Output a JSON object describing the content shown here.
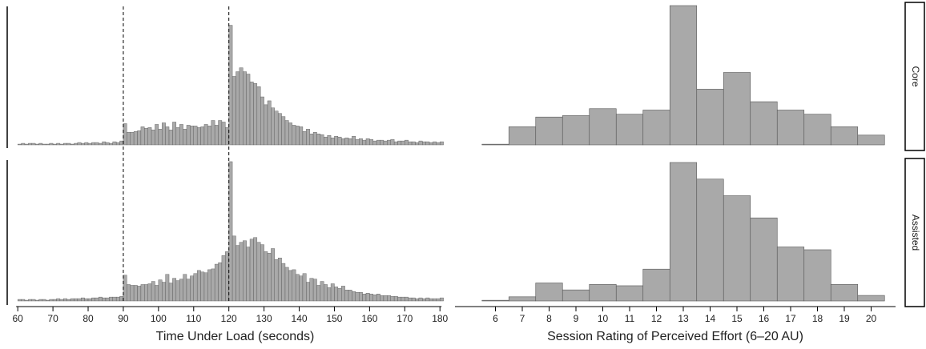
{
  "colors": {
    "bar_fill": "#a9a9a9",
    "bar_stroke": "#555555",
    "axis": "#000000",
    "reference_line": "#000000"
  },
  "facets": {
    "rows": [
      "Core",
      "Assisted"
    ]
  },
  "chart_data": [
    {
      "type": "bar",
      "panel": "left",
      "xlabel": "Time Under Load (seconds)",
      "ylabel": "",
      "xlim": [
        57,
        182
      ],
      "xticks": [
        60,
        70,
        80,
        90,
        100,
        110,
        120,
        130,
        140,
        150,
        160,
        170,
        180
      ],
      "reference_lines_x": [
        90,
        120
      ],
      "bin_start": 60,
      "bin_width": 1,
      "series": [
        {
          "name": "Core",
          "counts": [
            1,
            2,
            1,
            2,
            2,
            1,
            2,
            1,
            1,
            2,
            1,
            2,
            1,
            2,
            2,
            1,
            2,
            3,
            2,
            3,
            2,
            3,
            3,
            2,
            4,
            3,
            2,
            4,
            3,
            5,
            27,
            16,
            16,
            17,
            18,
            23,
            21,
            22,
            19,
            26,
            20,
            28,
            23,
            19,
            29,
            22,
            26,
            20,
            25,
            24,
            24,
            22,
            23,
            26,
            24,
            31,
            25,
            31,
            29,
            22,
            152,
            87,
            93,
            98,
            93,
            90,
            80,
            78,
            74,
            61,
            51,
            56,
            47,
            43,
            40,
            36,
            31,
            28,
            25,
            24,
            23,
            17,
            20,
            14,
            16,
            14,
            13,
            10,
            12,
            9,
            11,
            10,
            8,
            9,
            8,
            11,
            7,
            8,
            6,
            8,
            7,
            5,
            6,
            6,
            5,
            6,
            7,
            4,
            5,
            5,
            6,
            4,
            4,
            3,
            5,
            4,
            4,
            3,
            4,
            3,
            4
          ],
          "ylim": [
            0,
            180
          ]
        },
        {
          "name": "Assisted",
          "counts": [
            2,
            2,
            1,
            2,
            2,
            1,
            2,
            2,
            1,
            2,
            2,
            3,
            2,
            3,
            2,
            3,
            3,
            3,
            4,
            3,
            3,
            4,
            4,
            5,
            4,
            4,
            5,
            5,
            5,
            6,
            33,
            21,
            20,
            20,
            19,
            21,
            21,
            22,
            25,
            20,
            27,
            24,
            34,
            23,
            29,
            26,
            28,
            34,
            28,
            32,
            35,
            39,
            37,
            36,
            40,
            41,
            47,
            49,
            58,
            63,
            178,
            83,
            71,
            75,
            77,
            69,
            79,
            81,
            75,
            72,
            63,
            61,
            67,
            53,
            55,
            48,
            43,
            39,
            40,
            34,
            32,
            35,
            24,
            29,
            28,
            20,
            25,
            21,
            17,
            22,
            18,
            16,
            19,
            14,
            14,
            12,
            11,
            11,
            9,
            10,
            9,
            8,
            9,
            7,
            7,
            7,
            6,
            6,
            5,
            5,
            5,
            4,
            4,
            3,
            4,
            3,
            4,
            3,
            3,
            3,
            4
          ],
          "ylim": [
            0,
            180
          ]
        }
      ]
    },
    {
      "type": "bar",
      "panel": "right",
      "xlabel": "Session Rating of Perceived Effort (6–20 AU)",
      "ylabel": "",
      "categories": [
        "6",
        "7",
        "8",
        "9",
        "10",
        "11",
        "12",
        "13",
        "14",
        "15",
        "16",
        "17",
        "18",
        "19",
        "20"
      ],
      "series": [
        {
          "name": "Core",
          "values": [
            0.5,
            13,
            20,
            21,
            26,
            22,
            25,
            100,
            40,
            52,
            31,
            25,
            22,
            13,
            7
          ],
          "ylim": [
            0,
            100
          ]
        },
        {
          "name": "Assisted",
          "values": [
            0.5,
            3,
            13,
            8,
            12,
            11,
            23,
            100,
            88,
            76,
            60,
            39,
            37,
            12,
            4
          ],
          "ylim": [
            0,
            100
          ]
        }
      ]
    }
  ]
}
